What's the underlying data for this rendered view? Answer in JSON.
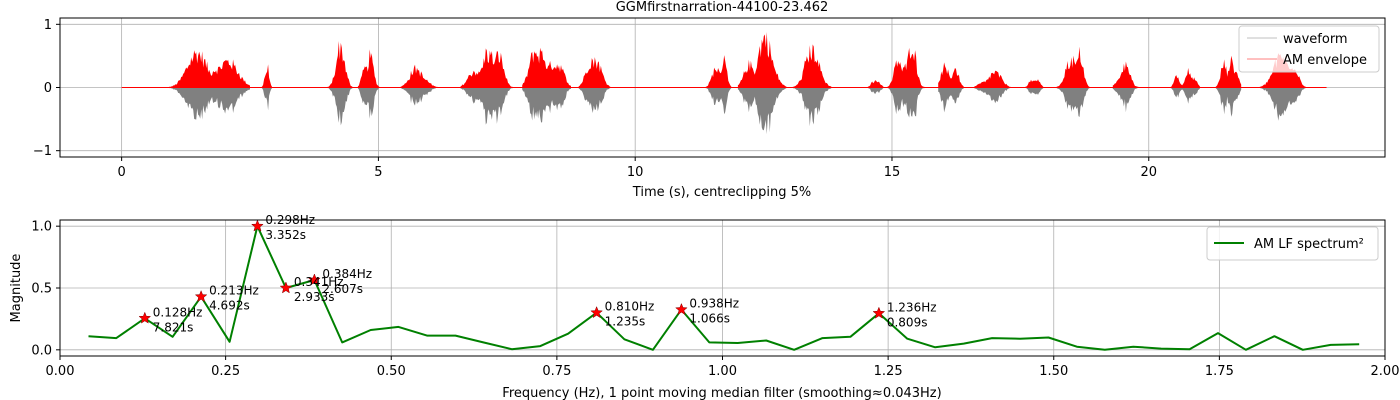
{
  "chart_data": [
    {
      "type": "area",
      "title": "GGMfirstnarration-44100-23.462",
      "xlabel": "Time (s), centreclipping 5%",
      "ylabel": "",
      "xlim": [
        -1.2,
        24.6
      ],
      "ylim": [
        -1.1,
        1.1
      ],
      "xticks": [
        0,
        5,
        10,
        15,
        20
      ],
      "xtick_labels": [
        "0",
        "5",
        "10",
        "15",
        "20"
      ],
      "yticks": [
        -1,
        0,
        1
      ],
      "ytick_labels": [
        "−1",
        "0",
        "1"
      ],
      "grid": true,
      "legend_position": "top-right",
      "legend": [
        "waveform",
        "AM envelope"
      ],
      "colors": {
        "waveform": "#808080",
        "envelope": "#ff0000"
      },
      "duration_s": 23.462,
      "speech_segments": [
        [
          0.85,
          2.5,
          0.72
        ],
        [
          2.6,
          2.95,
          0.45
        ],
        [
          3.9,
          4.5,
          0.82
        ],
        [
          4.6,
          5.1,
          0.62
        ],
        [
          5.4,
          6.3,
          0.4
        ],
        [
          6.6,
          7.7,
          0.72
        ],
        [
          7.8,
          8.75,
          0.9
        ],
        [
          8.9,
          9.9,
          0.7
        ],
        [
          11.3,
          11.95,
          0.72
        ],
        [
          12.0,
          12.95,
          1.0
        ],
        [
          13.05,
          14.0,
          0.75
        ],
        [
          14.5,
          14.9,
          0.15
        ],
        [
          14.85,
          15.8,
          0.88
        ],
        [
          15.9,
          16.4,
          0.55
        ],
        [
          16.6,
          17.5,
          0.3
        ],
        [
          17.55,
          18.0,
          0.2
        ],
        [
          18.2,
          19.2,
          0.67
        ],
        [
          19.3,
          20.2,
          0.55
        ],
        [
          20.4,
          21.0,
          0.4
        ],
        [
          21.1,
          21.8,
          0.62
        ],
        [
          21.9,
          23.3,
          0.62
        ]
      ]
    },
    {
      "type": "line",
      "title": "",
      "xlabel": "Frequency (Hz), 1 point moving median filter (smoothing≈0.043Hz)",
      "ylabel": "Magnitude",
      "xlim": [
        0.0,
        2.0
      ],
      "ylim": [
        -0.05,
        1.05
      ],
      "xticks": [
        0.0,
        0.25,
        0.5,
        0.75,
        1.0,
        1.25,
        1.5,
        1.75,
        2.0
      ],
      "xtick_labels": [
        "0.00",
        "0.25",
        "0.50",
        "0.75",
        "1.00",
        "1.25",
        "1.50",
        "1.75",
        "2.00"
      ],
      "yticks": [
        0.0,
        0.5,
        1.0
      ],
      "ytick_labels": [
        "0.0",
        "0.5",
        "1.0"
      ],
      "grid": true,
      "legend_position": "top-right",
      "series": [
        {
          "name": "AM LF spectrum²",
          "color": "#008000",
          "x": [
            0.043,
            0.085,
            0.128,
            0.17,
            0.213,
            0.256,
            0.298,
            0.341,
            0.384,
            0.426,
            0.469,
            0.511,
            0.554,
            0.597,
            0.639,
            0.682,
            0.725,
            0.767,
            0.81,
            0.852,
            0.895,
            0.938,
            0.98,
            1.023,
            1.066,
            1.108,
            1.151,
            1.193,
            1.236,
            1.279,
            1.321,
            1.364,
            1.407,
            1.449,
            1.492,
            1.535,
            1.577,
            1.62,
            1.662,
            1.705,
            1.748,
            1.79,
            1.833,
            1.876,
            1.918,
            1.961
          ],
          "y": [
            0.11,
            0.095,
            0.255,
            0.105,
            0.43,
            0.065,
            1.0,
            0.5,
            0.565,
            0.06,
            0.16,
            0.185,
            0.115,
            0.115,
            0.06,
            0.005,
            0.03,
            0.13,
            0.3,
            0.085,
            0.0,
            0.325,
            0.06,
            0.055,
            0.075,
            0.0,
            0.095,
            0.105,
            0.295,
            0.09,
            0.02,
            0.05,
            0.095,
            0.09,
            0.1,
            0.025,
            0.0,
            0.025,
            0.01,
            0.005,
            0.135,
            0.0,
            0.11,
            0.0,
            0.04,
            0.045
          ]
        }
      ],
      "peaks": [
        {
          "x": 0.128,
          "y": 0.255,
          "freq_label": "0.128Hz",
          "period_label": "7.821s"
        },
        {
          "x": 0.213,
          "y": 0.43,
          "freq_label": "0.213Hz",
          "period_label": "4.692s"
        },
        {
          "x": 0.298,
          "y": 1.0,
          "freq_label": "0.298Hz",
          "period_label": "3.352s"
        },
        {
          "x": 0.341,
          "y": 0.5,
          "freq_label": "0.341Hz",
          "period_label": "2.933s"
        },
        {
          "x": 0.384,
          "y": 0.565,
          "freq_label": "0.384Hz",
          "period_label": "2.607s"
        },
        {
          "x": 0.81,
          "y": 0.3,
          "freq_label": "0.810Hz",
          "period_label": "1.235s"
        },
        {
          "x": 0.938,
          "y": 0.325,
          "freq_label": "0.938Hz",
          "period_label": "1.066s"
        },
        {
          "x": 1.236,
          "y": 0.295,
          "freq_label": "1.236Hz",
          "period_label": "0.809s"
        }
      ],
      "peak_marker_color": "#ff0000"
    }
  ]
}
